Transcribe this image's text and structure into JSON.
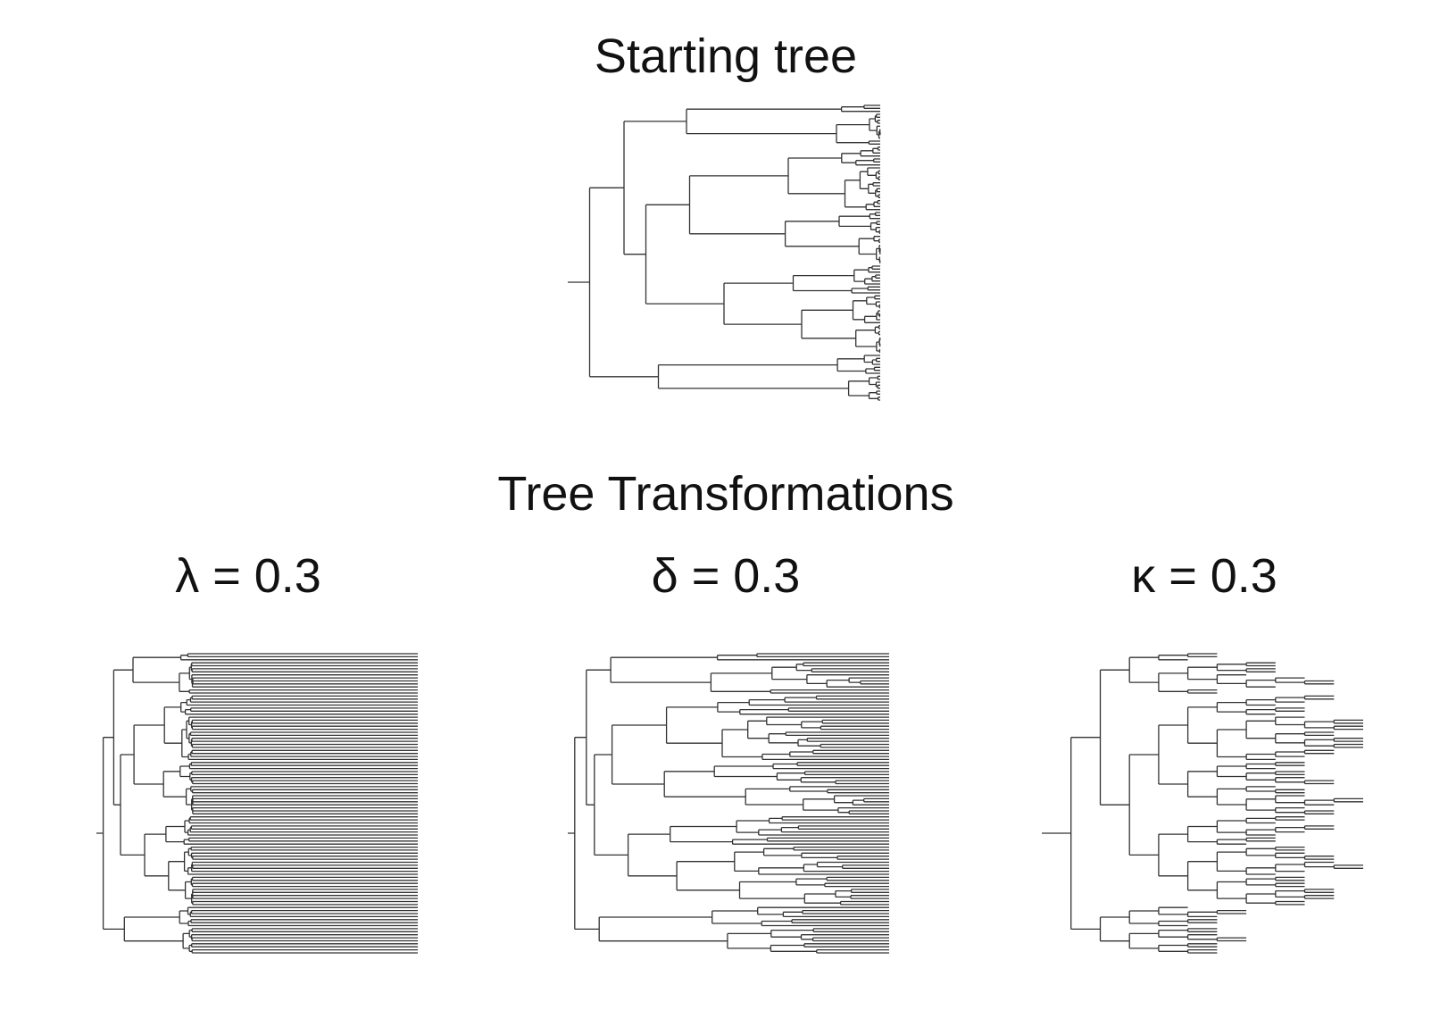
{
  "starting_tree": {
    "title": "Starting tree"
  },
  "transformations": {
    "title": "Tree Transformations",
    "panels": [
      {
        "id": "lambda",
        "title": "λ = 0.3",
        "parameter": "λ",
        "value": 0.3
      },
      {
        "id": "delta",
        "title": "δ = 0.3",
        "parameter": "δ",
        "value": 0.3
      },
      {
        "id": "kappa",
        "title": "κ = 0.3",
        "parameter": "κ",
        "value": 0.3
      }
    ]
  },
  "tree": {
    "description_tips": 100,
    "line_color": "#333333"
  }
}
